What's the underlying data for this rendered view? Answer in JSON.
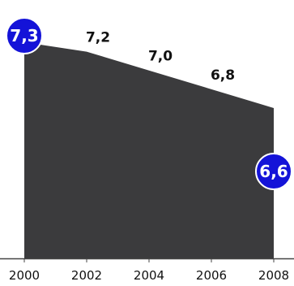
{
  "chart_data": {
    "type": "area",
    "x": [
      2000,
      2002,
      2004,
      2006,
      2008
    ],
    "values": [
      7.3,
      7.2,
      7.0,
      6.8,
      6.6
    ],
    "data_labels": [
      "7,3",
      "7,2",
      "7,0",
      "6,8",
      "6,6"
    ],
    "highlighted_points": [
      0,
      4
    ],
    "xticks": [
      "2000",
      "2002",
      "2004",
      "2006",
      "2008"
    ],
    "ylim": [
      5.0,
      7.3
    ],
    "grid": false,
    "colors": {
      "area": "#3b3b3d",
      "bubble": "#1413d8",
      "bubble_outline": "#ffffff",
      "axis": "#444444",
      "label": "#111111"
    }
  }
}
